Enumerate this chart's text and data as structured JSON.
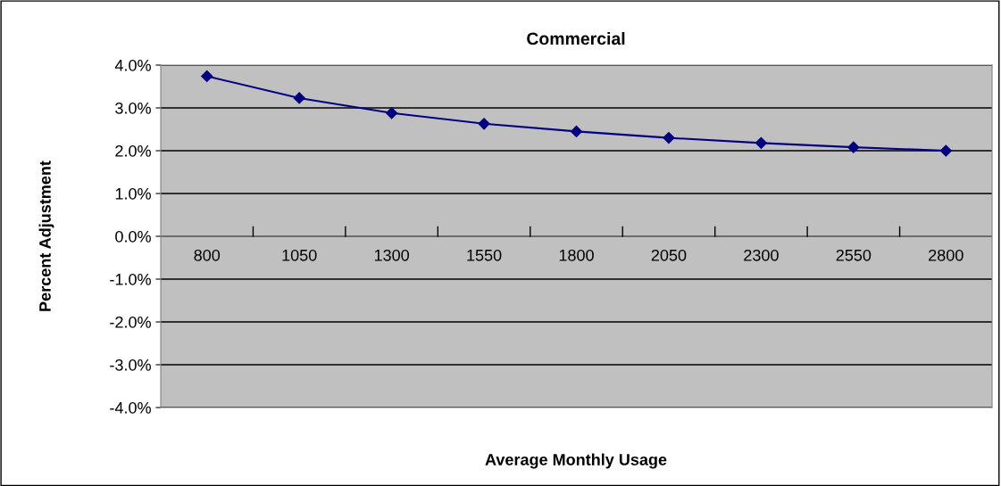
{
  "chart_data": {
    "type": "line",
    "title": "Commercial",
    "xlabel": "Average Monthly Usage",
    "ylabel": "Percent Adjustment",
    "categories": [
      "800",
      "1050",
      "1300",
      "1550",
      "1800",
      "2050",
      "2300",
      "2550",
      "2800"
    ],
    "series": [
      {
        "color": "#000080",
        "values": [
          3.74,
          3.23,
          2.88,
          2.63,
          2.45,
          2.3,
          2.18,
          2.08,
          2.0
        ]
      }
    ],
    "ylim": [
      -4,
      4
    ],
    "yticks": [
      {
        "value": -4,
        "label": "-4.0%"
      },
      {
        "value": -3,
        "label": "-3.0%"
      },
      {
        "value": -2,
        "label": "-2.0%"
      },
      {
        "value": -1,
        "label": "-1.0%"
      },
      {
        "value": 0,
        "label": "0.0%"
      },
      {
        "value": 1,
        "label": "1.0%"
      },
      {
        "value": 2,
        "label": "2.0%"
      },
      {
        "value": 3,
        "label": "3.0%"
      },
      {
        "value": 4,
        "label": "4.0%"
      }
    ],
    "grid": "y",
    "marker": "diamond",
    "line_style": "solid",
    "legend": false
  }
}
